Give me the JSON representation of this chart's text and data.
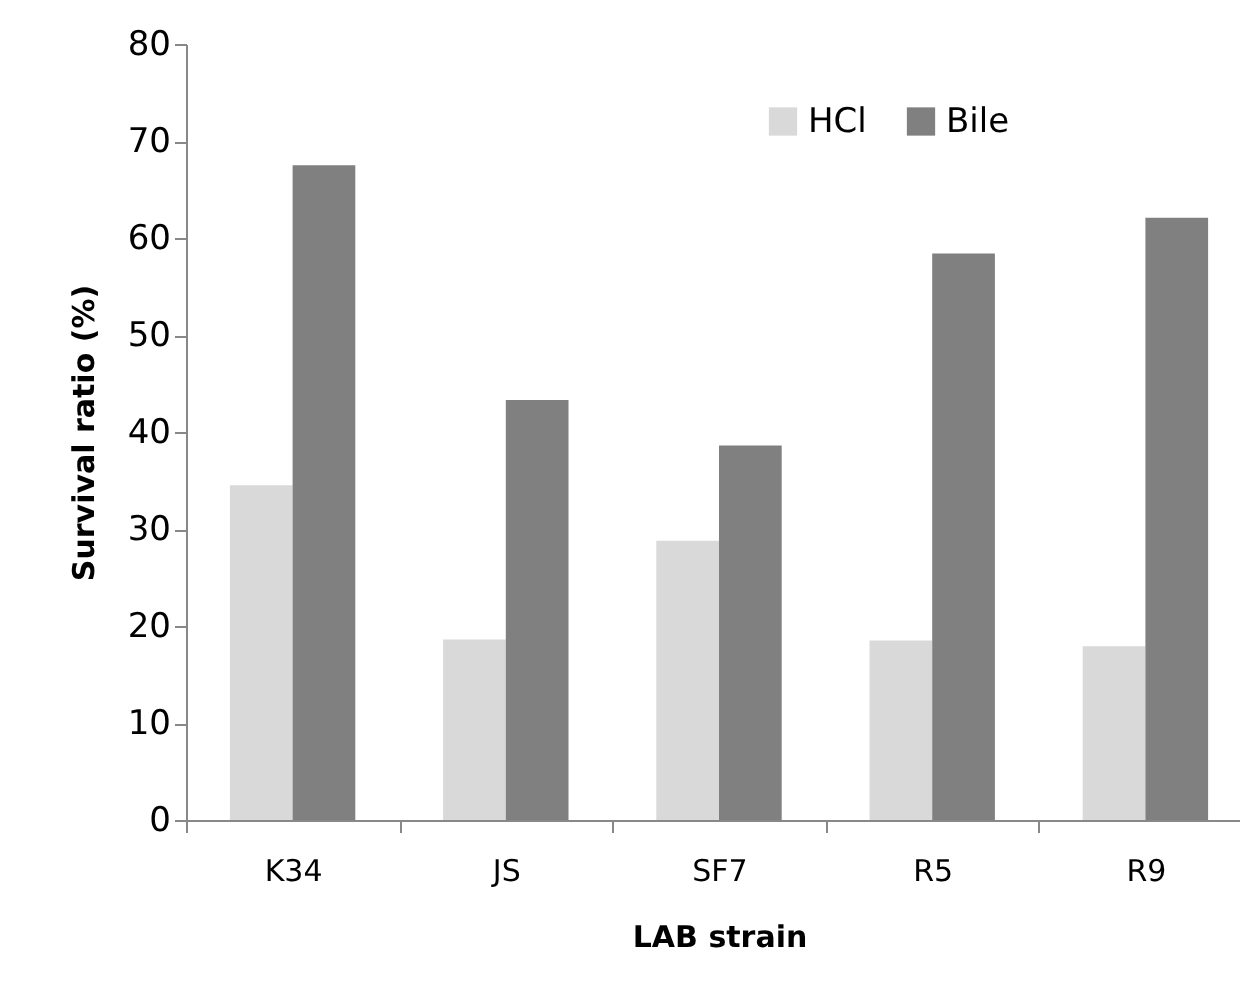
{
  "chart_data": {
    "type": "bar",
    "xlabel": "LAB strain",
    "ylabel": "Survival ratio (%)",
    "categories": [
      "K34",
      "JS",
      "SF7",
      "R5",
      "R9"
    ],
    "series": [
      {
        "name": "HCl",
        "color": "#d9d9d9",
        "values": [
          34.5,
          18.6,
          28.8,
          18.5,
          17.9
        ]
      },
      {
        "name": "Bile",
        "color": "#808080",
        "values": [
          67.5,
          43.3,
          38.6,
          58.4,
          62.1
        ]
      }
    ],
    "ylim": [
      0,
      80
    ],
    "yticks": [
      0,
      10,
      20,
      30,
      40,
      50,
      60,
      70,
      80
    ],
    "grid": false,
    "legend": "top"
  }
}
